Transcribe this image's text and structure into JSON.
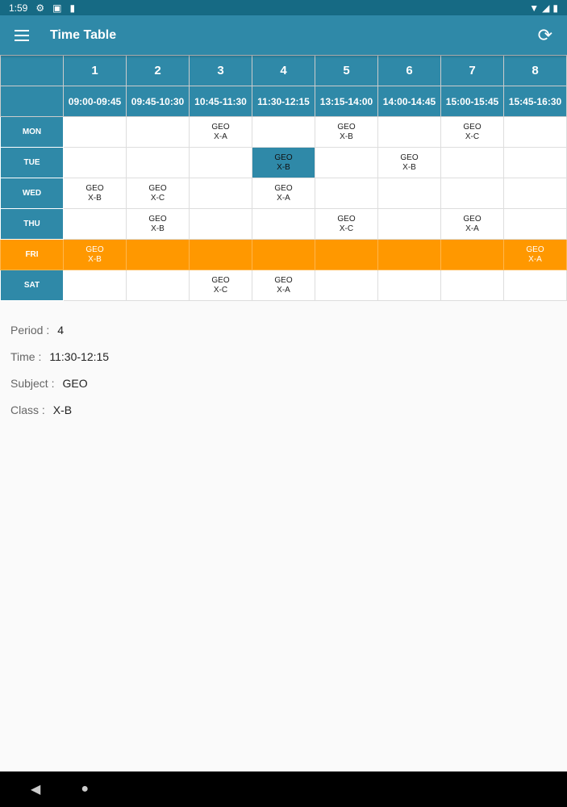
{
  "status": {
    "time": "1:59"
  },
  "appbar": {
    "title": "Time Table"
  },
  "periods": [
    {
      "num": "1",
      "time": "09:00-09:45"
    },
    {
      "num": "2",
      "time": "09:45-10:30"
    },
    {
      "num": "3",
      "time": "10:45-11:30"
    },
    {
      "num": "4",
      "time": "11:30-12:15"
    },
    {
      "num": "5",
      "time": "13:15-14:00"
    },
    {
      "num": "6",
      "time": "14:00-14:45"
    },
    {
      "num": "7",
      "time": "15:00-15:45"
    },
    {
      "num": "8",
      "time": "15:45-16:30"
    }
  ],
  "days": [
    {
      "day": "MON",
      "cells": [
        null,
        null,
        [
          "GEO",
          "X-A"
        ],
        null,
        [
          "GEO",
          "X-B"
        ],
        null,
        [
          "GEO",
          "X-C"
        ],
        null
      ]
    },
    {
      "day": "TUE",
      "cells": [
        null,
        null,
        null,
        [
          "GEO",
          "X-B"
        ],
        null,
        [
          "GEO",
          "X-B"
        ],
        null,
        null
      ]
    },
    {
      "day": "WED",
      "cells": [
        [
          "GEO",
          "X-B"
        ],
        [
          "GEO",
          "X-C"
        ],
        null,
        [
          "GEO",
          "X-A"
        ],
        null,
        null,
        null,
        null
      ]
    },
    {
      "day": "THU",
      "cells": [
        null,
        [
          "GEO",
          "X-B"
        ],
        null,
        null,
        [
          "GEO",
          "X-C"
        ],
        null,
        [
          "GEO",
          "X-A"
        ],
        null
      ]
    },
    {
      "day": "FRI",
      "today": true,
      "cells": [
        [
          "GEO",
          "X-B"
        ],
        null,
        null,
        null,
        null,
        null,
        null,
        [
          "GEO",
          "X-A"
        ]
      ]
    },
    {
      "day": "SAT",
      "cells": [
        null,
        null,
        [
          "GEO",
          "X-C"
        ],
        [
          "GEO",
          "X-A"
        ],
        null,
        null,
        null,
        null
      ]
    }
  ],
  "selected": {
    "day": 1,
    "period": 3
  },
  "details": [
    {
      "label": "Period :",
      "value": "4"
    },
    {
      "label": "Time :",
      "value": "11:30-12:15"
    },
    {
      "label": "Subject :",
      "value": "GEO"
    },
    {
      "label": "Class :",
      "value": "X-B"
    }
  ],
  "colors": {
    "primary": "#2f89a8",
    "today": "#ff9800",
    "statusbar": "#166a84"
  }
}
